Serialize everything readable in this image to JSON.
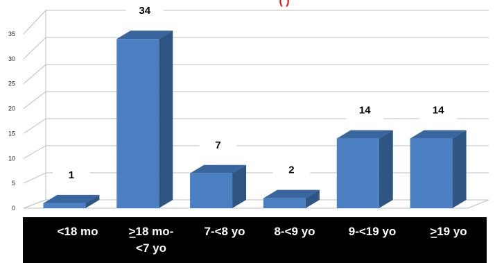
{
  "chart_data": {
    "type": "bar",
    "style": "3d-column",
    "title_fragment": "(                    )",
    "categories": [
      {
        "lines": [
          "<18 mo"
        ],
        "underline_first": false
      },
      {
        "lines": [
          ">18 mo-",
          "<7 yo"
        ],
        "underline_first": true
      },
      {
        "lines": [
          "7-<8 yo"
        ],
        "underline_first": false
      },
      {
        "lines": [
          "8-<9 yo"
        ],
        "underline_first": false
      },
      {
        "lines": [
          "9-<19 yo"
        ],
        "underline_first": false
      },
      {
        "lines": [
          ">19 yo"
        ],
        "underline_first": true
      }
    ],
    "values": [
      1,
      34,
      7,
      2,
      14,
      14
    ],
    "data_labels": [
      "1",
      "34",
      "7",
      "2",
      "14",
      "14"
    ],
    "ylim": [
      0,
      35
    ],
    "yticks": [
      "0",
      "5",
      "10",
      "15",
      "20",
      "25",
      "30",
      "35"
    ],
    "grid": true,
    "legend": "none",
    "colors": {
      "bar_front": "#4a7fc1",
      "bar_side": "#2f5683",
      "bar_top": "#3a66a0",
      "category_band": "#000000",
      "title": "#e01010"
    }
  }
}
